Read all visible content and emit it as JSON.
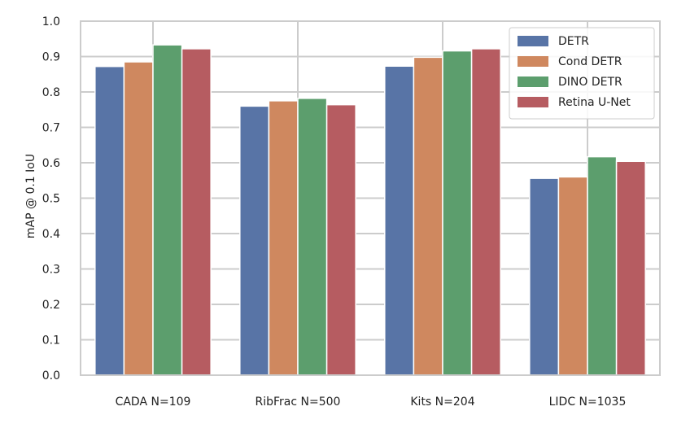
{
  "chart_data": {
    "type": "bar",
    "categories": [
      "CADA N=109",
      "RibFrac N=500",
      "Kits N=204",
      "LIDC N=1035"
    ],
    "series": [
      {
        "name": "DETR",
        "color": "#5874a6",
        "values": [
          0.872,
          0.76,
          0.873,
          0.556
        ]
      },
      {
        "name": "Cond DETR",
        "color": "#cf885f",
        "values": [
          0.885,
          0.775,
          0.898,
          0.56
        ]
      },
      {
        "name": "DINO DETR",
        "color": "#5c9e6d",
        "values": [
          0.933,
          0.782,
          0.916,
          0.617
        ]
      },
      {
        "name": "Retina U-Net",
        "color": "#b65c61",
        "values": [
          0.922,
          0.764,
          0.922,
          0.604
        ]
      }
    ],
    "xlabel": "",
    "ylabel": "mAP @ 0.1 IoU",
    "ylim": [
      0.0,
      1.0
    ],
    "yticks": [
      "0.0",
      "0.1",
      "0.2",
      "0.3",
      "0.4",
      "0.5",
      "0.6",
      "0.7",
      "0.8",
      "0.9",
      "1.0"
    ],
    "grid": true,
    "legend_position": "top-right"
  }
}
